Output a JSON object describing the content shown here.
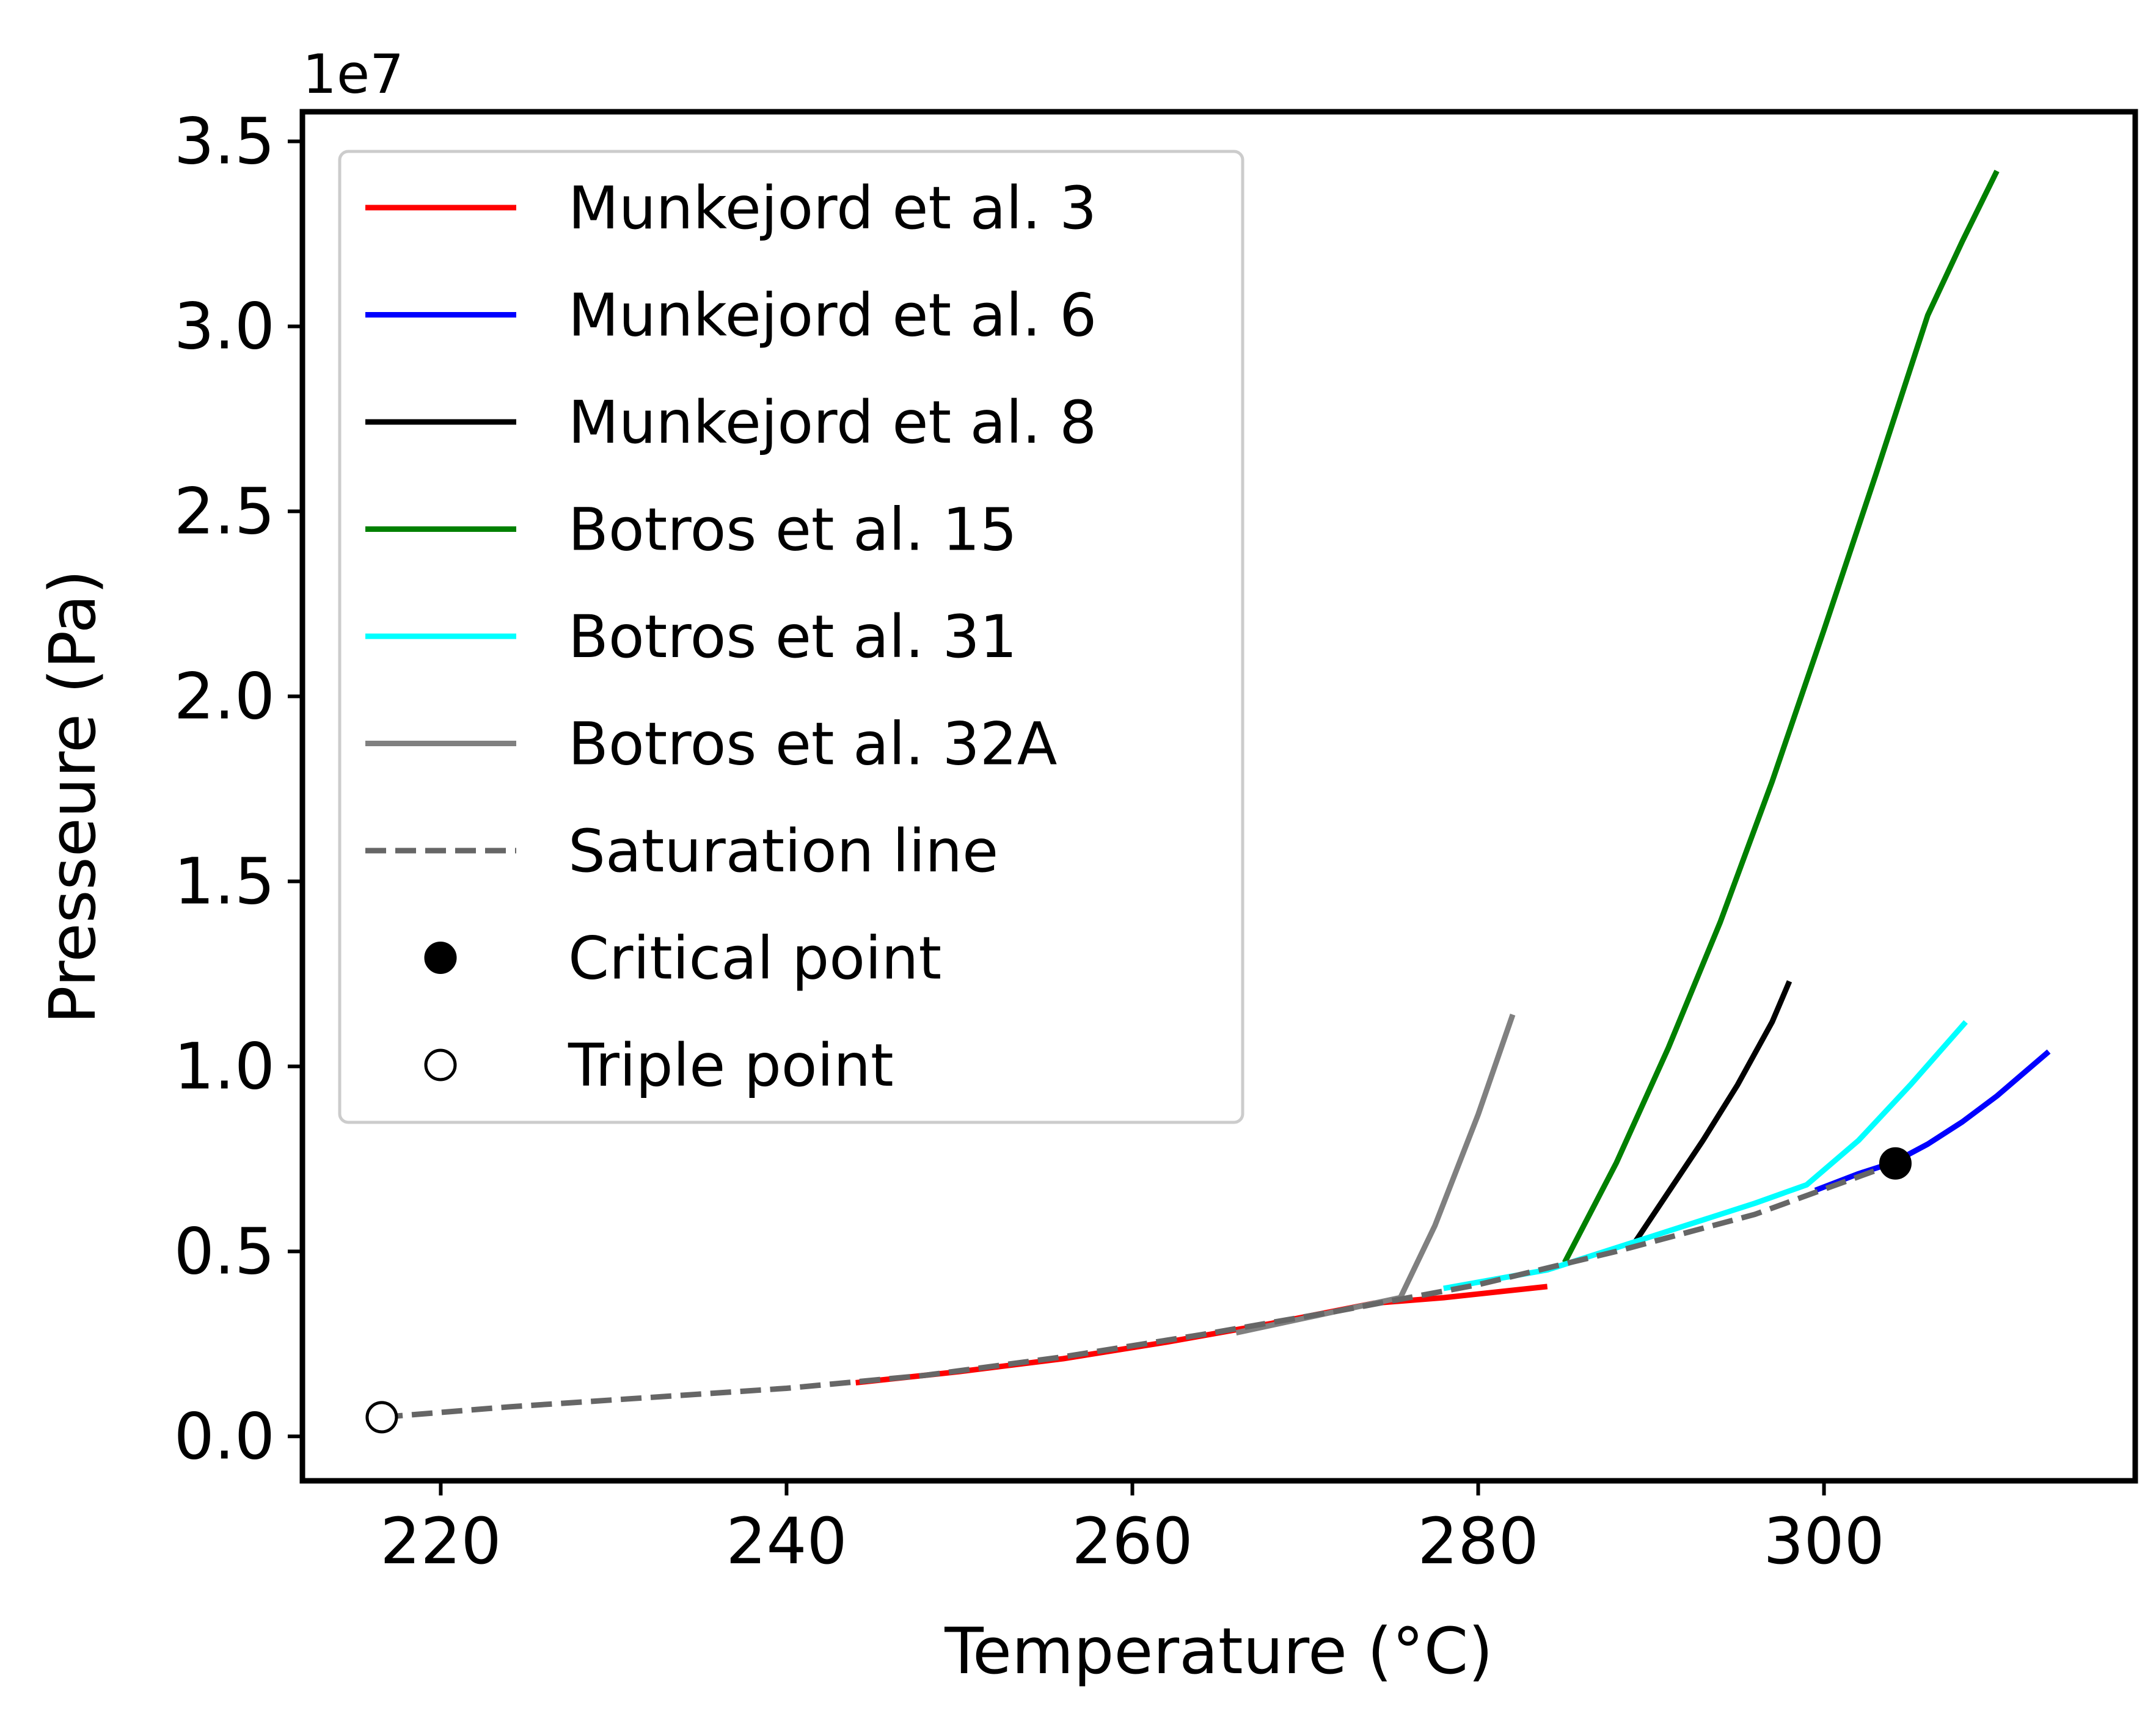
{
  "chart_data": {
    "type": "line",
    "xlabel": "Temperature ($^\\circ$C)",
    "xlabel_display": "Temperature (°C)",
    "ylabel": "Presseure (Pa)",
    "y_offset_label": "1e7",
    "xlim": [
      212,
      318
    ],
    "ylim": [
      -0.12,
      3.58
    ],
    "x_ticks": [
      220,
      240,
      260,
      280,
      300
    ],
    "x_tick_labels": [
      "220",
      "240",
      "260",
      "280",
      "300"
    ],
    "y_ticks": [
      0.0,
      0.5,
      1.0,
      1.5,
      2.0,
      2.5,
      3.0,
      3.5
    ],
    "y_tick_labels": [
      "0.0",
      "0.5",
      "1.0",
      "1.5",
      "2.0",
      "2.5",
      "3.0",
      "3.5"
    ],
    "y_units_scale": 10000000,
    "grid": false,
    "legend_position": "top-left",
    "series": [
      {
        "name": "Munkejord et al. 3",
        "color": "#ff0000",
        "style": "solid",
        "x": [
          244,
          250,
          256,
          262,
          268,
          274,
          278,
          284
        ],
        "y": [
          0.145,
          0.175,
          0.21,
          0.255,
          0.305,
          0.36,
          0.375,
          0.405
        ]
      },
      {
        "name": "Munkejord et al. 6",
        "color": "#0000ff",
        "style": "solid",
        "x": [
          299.5,
          302,
          304,
          306,
          308,
          310,
          313
        ],
        "y": [
          0.665,
          0.71,
          0.74,
          0.79,
          0.85,
          0.92,
          1.04
        ]
      },
      {
        "name": "Munkejord et al. 8",
        "color": "#000000",
        "style": "solid",
        "x": [
          289,
          291,
          293,
          295,
          297,
          298
        ],
        "y": [
          0.52,
          0.66,
          0.8,
          0.95,
          1.12,
          1.23
        ]
      },
      {
        "name": "Botros et al. 15",
        "color": "#008000",
        "style": "solid",
        "x": [
          285,
          288,
          291,
          294,
          297,
          300,
          303,
          306,
          308,
          310
        ],
        "y": [
          0.47,
          0.74,
          1.05,
          1.39,
          1.77,
          2.18,
          2.6,
          3.03,
          3.23,
          3.42
        ]
      },
      {
        "name": "Botros et al. 31",
        "color": "#00ffff",
        "style": "solid",
        "x": [
          278,
          284,
          290,
          296,
          299,
          302,
          305,
          308.2
        ],
        "y": [
          0.4,
          0.45,
          0.54,
          0.63,
          0.68,
          0.8,
          0.95,
          1.12
        ]
      },
      {
        "name": "Botros et al. 32A",
        "color": "#808080",
        "style": "solid",
        "x": [
          266,
          270,
          274,
          275.5,
          277.5,
          280,
          282
        ],
        "y": [
          0.28,
          0.32,
          0.36,
          0.375,
          0.57,
          0.87,
          1.14
        ]
      },
      {
        "name": "Saturation line",
        "color": "#666666",
        "style": "dashed",
        "x": [
          216.6,
          224,
          232,
          240,
          248,
          256,
          264,
          272,
          280,
          288,
          296,
          304.1
        ],
        "y": [
          0.052,
          0.08,
          0.105,
          0.13,
          0.165,
          0.215,
          0.275,
          0.34,
          0.41,
          0.5,
          0.6,
          0.7375
        ]
      },
      {
        "name": "Critical point",
        "color": "#000000",
        "style": "marker-filled",
        "x": [
          304.13
        ],
        "y": [
          0.7377
        ]
      },
      {
        "name": "Triple point",
        "color": "#000000",
        "style": "marker-open",
        "x": [
          216.59
        ],
        "y": [
          0.0518
        ]
      }
    ]
  }
}
